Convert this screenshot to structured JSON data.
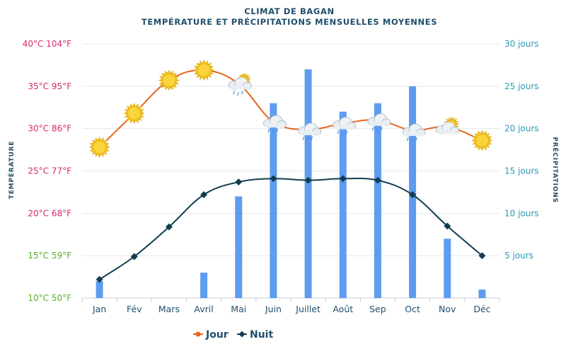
{
  "chart_data": {
    "type": "bar+line",
    "title": "CLIMAT DE BAGAN",
    "subtitle": "TEMPÉRATURE ET PRÉCIPITATIONS MENSUELLES MOYENNES",
    "categories": [
      "Jan",
      "Fév",
      "Mars",
      "Avril",
      "Mai",
      "Juin",
      "Juillet",
      "Août",
      "Sep",
      "Oct",
      "Nov",
      "Déc"
    ],
    "y_left": {
      "label": "TEMPÉRATURE",
      "range_c": [
        10,
        40
      ],
      "ticks": [
        {
          "c": 40,
          "text": "40°C 104°F",
          "color": "#d6286e"
        },
        {
          "c": 35,
          "text": "35°C 95°F",
          "color": "#d6286e"
        },
        {
          "c": 30,
          "text": "30°C 86°F",
          "color": "#d6286e"
        },
        {
          "c": 25,
          "text": "25°C 77°F",
          "color": "#d6286e"
        },
        {
          "c": 20,
          "text": "20°C 68°F",
          "color": "#d6286e"
        },
        {
          "c": 15,
          "text": "15°C 59°F",
          "color": "#5bb030"
        },
        {
          "c": 10,
          "text": "10°C 50°F",
          "color": "#5bb030"
        }
      ]
    },
    "y_right": {
      "label": "PRÉCIPITATIONS",
      "range_days": [
        0,
        30
      ],
      "ticks": [
        {
          "v": 30,
          "text": "30 jours"
        },
        {
          "v": 25,
          "text": "25 jours"
        },
        {
          "v": 20,
          "text": "20 jours"
        },
        {
          "v": 15,
          "text": "15 jours"
        },
        {
          "v": 10,
          "text": "10 jours"
        },
        {
          "v": 5,
          "text": "5 jours"
        }
      ]
    },
    "series": [
      {
        "name": "Jour",
        "kind": "line",
        "axis": "left",
        "color": "#e8651e",
        "values": [
          27.8,
          31.8,
          35.7,
          36.9,
          35.3,
          30.8,
          29.9,
          30.6,
          31.0,
          29.8,
          30.2,
          28.6
        ]
      },
      {
        "name": "Nuit",
        "kind": "line",
        "axis": "left",
        "color": "#123c50",
        "values": [
          12.2,
          14.9,
          18.4,
          22.2,
          23.7,
          24.1,
          23.9,
          24.1,
          23.9,
          22.2,
          18.5,
          15.0
        ]
      },
      {
        "kind": "bar",
        "axis": "right",
        "color": "#5e9cf0",
        "values": [
          2,
          0,
          0,
          3,
          12,
          23,
          27,
          22,
          23,
          25,
          7,
          1
        ]
      }
    ],
    "weather_icons": [
      "sun",
      "sun",
      "sun",
      "sun",
      "sun-cloud-rain",
      "cloud-rain",
      "cloud-rain",
      "cloud-rain",
      "cloud-rain",
      "cloud-rain",
      "sun-cloud",
      "sun"
    ],
    "legend": {
      "position": "bottom-center"
    },
    "grid": true
  }
}
